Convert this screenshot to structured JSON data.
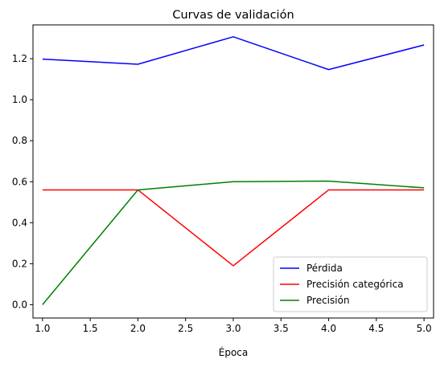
{
  "chart_data": {
    "type": "line",
    "title": "Curvas de validación",
    "xlabel": "Época",
    "ylabel": "",
    "x": [
      1.0,
      2.0,
      3.0,
      4.0,
      5.0
    ],
    "xlim": [
      0.9,
      5.1
    ],
    "ylim": [
      -0.065,
      1.365
    ],
    "xticks": [
      "1.0",
      "1.5",
      "2.0",
      "2.5",
      "3.0",
      "3.5",
      "4.0",
      "4.5",
      "5.0"
    ],
    "yticks": [
      "0.0",
      "0.2",
      "0.4",
      "0.6",
      "0.8",
      "1.0",
      "1.2"
    ],
    "grid": false,
    "legend_position": "lower-right",
    "series": [
      {
        "name": "Pérdida",
        "color": "#0000ff",
        "values": [
          1.198,
          1.173,
          1.307,
          1.147,
          1.267
        ]
      },
      {
        "name": "Precisión categórica",
        "color": "#ff0000",
        "values": [
          0.56,
          0.56,
          0.19,
          0.56,
          0.56
        ]
      },
      {
        "name": "Precisión",
        "color": "#008000",
        "values": [
          0.0,
          0.56,
          0.6,
          0.603,
          0.57
        ]
      }
    ]
  }
}
